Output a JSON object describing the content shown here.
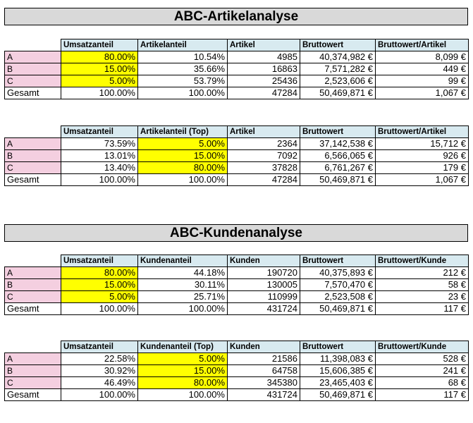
{
  "article_section": {
    "title": "ABC-Artikelanalyse",
    "tables": [
      {
        "headers": [
          "Umsatzanteil",
          "Artikelanteil",
          "Artikel",
          "Bruttowert",
          "Bruttowert/Artikel"
        ],
        "rows": [
          {
            "label": "A",
            "cells": [
              "80.00%",
              "10.54%",
              "4985",
              "40,374,982 €",
              "8,099 €"
            ]
          },
          {
            "label": "B",
            "cells": [
              "15.00%",
              "35.66%",
              "16863",
              "7,571,282 €",
              "449 €"
            ]
          },
          {
            "label": "C",
            "cells": [
              "5.00%",
              "53.79%",
              "25436",
              "2,523,606 €",
              "99 €"
            ]
          }
        ],
        "total": {
          "label": "Gesamt",
          "cells": [
            "100.00%",
            "100.00%",
            "47284",
            "50,469,871 €",
            "1,067 €"
          ]
        }
      },
      {
        "headers": [
          "Umsatzanteil",
          "Artikelanteil (Top)",
          "Artikel",
          "Bruttowert",
          "Bruttowert/Artikel"
        ],
        "rows": [
          {
            "label": "A",
            "cells": [
              "73.59%",
              "5.00%",
              "2364",
              "37,142,538 €",
              "15,712 €"
            ]
          },
          {
            "label": "B",
            "cells": [
              "13.01%",
              "15.00%",
              "7092",
              "6,566,065 €",
              "926 €"
            ]
          },
          {
            "label": "C",
            "cells": [
              "13.40%",
              "80.00%",
              "37828",
              "6,761,267 €",
              "179 €"
            ]
          }
        ],
        "total": {
          "label": "Gesamt",
          "cells": [
            "100.00%",
            "100.00%",
            "47284",
            "50,469,871 €",
            "1,067 €"
          ]
        }
      }
    ]
  },
  "customer_section": {
    "title": "ABC-Kundenanalyse",
    "tables": [
      {
        "headers": [
          "Umsatzanteil",
          "Kundenanteil",
          "Kunden",
          "Bruttowert",
          "Bruttowert/Kunde"
        ],
        "rows": [
          {
            "label": "A",
            "cells": [
              "80.00%",
              "44.18%",
              "190720",
              "40,375,893 €",
              "212 €"
            ]
          },
          {
            "label": "B",
            "cells": [
              "15.00%",
              "30.11%",
              "130005",
              "7,570,470 €",
              "58 €"
            ]
          },
          {
            "label": "C",
            "cells": [
              "5.00%",
              "25.71%",
              "110999",
              "2,523,508 €",
              "23 €"
            ]
          }
        ],
        "total": {
          "label": "Gesamt",
          "cells": [
            "100.00%",
            "100.00%",
            "431724",
            "50,469,871 €",
            "117 €"
          ]
        }
      },
      {
        "headers": [
          "Umsatzanteil",
          "Kundenanteil (Top)",
          "Kunden",
          "Bruttowert",
          "Bruttowert/Kunde"
        ],
        "rows": [
          {
            "label": "A",
            "cells": [
              "22.58%",
              "5.00%",
              "21586",
              "11,398,083 €",
              "528 €"
            ]
          },
          {
            "label": "B",
            "cells": [
              "30.92%",
              "15.00%",
              "64758",
              "15,606,385 €",
              "241 €"
            ]
          },
          {
            "label": "C",
            "cells": [
              "46.49%",
              "80.00%",
              "345380",
              "23,465,403 €",
              "68 €"
            ]
          }
        ],
        "total": {
          "label": "Gesamt",
          "cells": [
            "100.00%",
            "100.00%",
            "431724",
            "50,469,871 €",
            "117 €"
          ]
        }
      }
    ]
  },
  "highlight_color": "#ffff00",
  "header_color": "#d8eaf0",
  "row_label_color": "#f4cfe0"
}
